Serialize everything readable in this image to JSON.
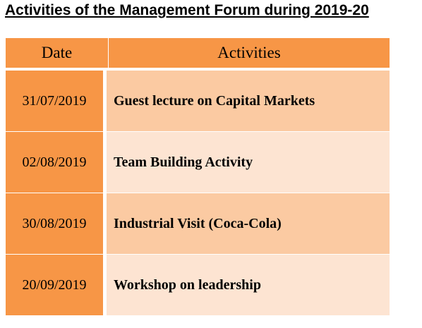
{
  "title": "Activities of the Management Forum during 2019-20",
  "table": {
    "headers": {
      "date": "Date",
      "activities": "Activities"
    },
    "rows": [
      {
        "date": "31/07/2019",
        "activity": "Guest lecture on Capital Markets"
      },
      {
        "date": "02/08/2019",
        "activity": "Team Building Activity"
      },
      {
        "date": "30/08/2019",
        "activity": "Industrial Visit (Coca-Cola)"
      },
      {
        "date": "20/09/2019",
        "activity": "Workshop on leadership"
      }
    ]
  },
  "colors": {
    "header_and_date_fill": "#f79646",
    "row_fill_dark": "#fbcaa2",
    "row_fill_light": "#fde4d2"
  }
}
